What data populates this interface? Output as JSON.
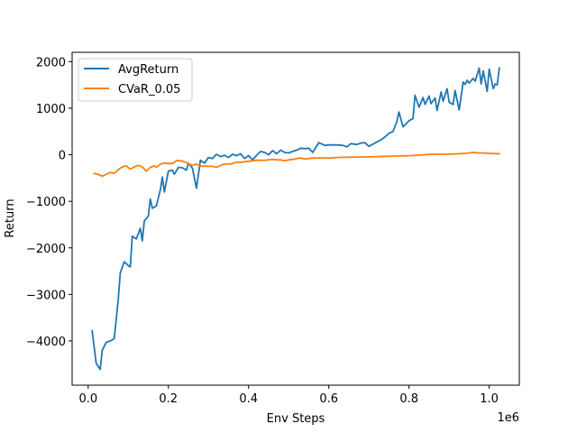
{
  "chart_data": {
    "type": "line",
    "title": "",
    "xlabel": "Env Steps",
    "ylabel": "Return",
    "x_offset_label": "1e6",
    "xlim": [
      -0.04,
      1.075
    ],
    "ylim": [
      -4950,
      2200
    ],
    "x_ticks": [
      0.0,
      0.2,
      0.4,
      0.6,
      0.8,
      1.0
    ],
    "x_tick_labels": [
      "0.0",
      "0.2",
      "0.4",
      "0.6",
      "0.8",
      "1.0"
    ],
    "y_ticks": [
      -4000,
      -3000,
      -2000,
      -1000,
      0,
      1000,
      2000
    ],
    "y_tick_labels": [
      "−4000",
      "−3000",
      "−2000",
      "−1000",
      "0",
      "1000",
      "2000"
    ],
    "grid": false,
    "legend_placement": "top-left",
    "series": [
      {
        "name": "AvgReturn",
        "color": "#1f77b4",
        "points": [
          [
            0.01,
            -3780
          ],
          [
            0.02,
            -4480
          ],
          [
            0.03,
            -4610
          ],
          [
            0.035,
            -4200
          ],
          [
            0.045,
            -4030
          ],
          [
            0.055,
            -4000
          ],
          [
            0.065,
            -3950
          ],
          [
            0.075,
            -3100
          ],
          [
            0.08,
            -2540
          ],
          [
            0.09,
            -2300
          ],
          [
            0.1,
            -2380
          ],
          [
            0.105,
            -2410
          ],
          [
            0.11,
            -1750
          ],
          [
            0.12,
            -1810
          ],
          [
            0.13,
            -1580
          ],
          [
            0.135,
            -1850
          ],
          [
            0.14,
            -1420
          ],
          [
            0.15,
            -1320
          ],
          [
            0.155,
            -950
          ],
          [
            0.16,
            -1150
          ],
          [
            0.17,
            -1100
          ],
          [
            0.18,
            -750
          ],
          [
            0.185,
            -480
          ],
          [
            0.19,
            -800
          ],
          [
            0.2,
            -350
          ],
          [
            0.21,
            -330
          ],
          [
            0.215,
            -420
          ],
          [
            0.225,
            -270
          ],
          [
            0.235,
            -280
          ],
          [
            0.245,
            -330
          ],
          [
            0.25,
            -180
          ],
          [
            0.26,
            -290
          ],
          [
            0.27,
            -720
          ],
          [
            0.28,
            -120
          ],
          [
            0.29,
            -180
          ],
          [
            0.3,
            -60
          ],
          [
            0.31,
            -80
          ],
          [
            0.32,
            10
          ],
          [
            0.33,
            -40
          ],
          [
            0.34,
            -10
          ],
          [
            0.35,
            -60
          ],
          [
            0.36,
            10
          ],
          [
            0.37,
            -20
          ],
          [
            0.38,
            20
          ],
          [
            0.39,
            -80
          ],
          [
            0.4,
            -20
          ],
          [
            0.41,
            -110
          ],
          [
            0.42,
            -10
          ],
          [
            0.43,
            70
          ],
          [
            0.44,
            50
          ],
          [
            0.45,
            0
          ],
          [
            0.46,
            90
          ],
          [
            0.47,
            20
          ],
          [
            0.48,
            100
          ],
          [
            0.49,
            50
          ],
          [
            0.5,
            40
          ],
          [
            0.51,
            70
          ],
          [
            0.52,
            100
          ],
          [
            0.53,
            140
          ],
          [
            0.54,
            130
          ],
          [
            0.55,
            140
          ],
          [
            0.56,
            50
          ],
          [
            0.575,
            260
          ],
          [
            0.59,
            200
          ],
          [
            0.6,
            210
          ],
          [
            0.62,
            210
          ],
          [
            0.635,
            200
          ],
          [
            0.645,
            170
          ],
          [
            0.655,
            240
          ],
          [
            0.67,
            220
          ],
          [
            0.68,
            250
          ],
          [
            0.69,
            260
          ],
          [
            0.7,
            180
          ],
          [
            0.715,
            250
          ],
          [
            0.73,
            320
          ],
          [
            0.74,
            380
          ],
          [
            0.75,
            460
          ],
          [
            0.76,
            500
          ],
          [
            0.77,
            720
          ],
          [
            0.775,
            920
          ],
          [
            0.785,
            600
          ],
          [
            0.8,
            730
          ],
          [
            0.81,
            780
          ],
          [
            0.815,
            1280
          ],
          [
            0.825,
            1020
          ],
          [
            0.835,
            1230
          ],
          [
            0.84,
            1080
          ],
          [
            0.85,
            1260
          ],
          [
            0.855,
            1100
          ],
          [
            0.865,
            1220
          ],
          [
            0.87,
            950
          ],
          [
            0.88,
            1350
          ],
          [
            0.885,
            1150
          ],
          [
            0.895,
            1420
          ],
          [
            0.9,
            1130
          ],
          [
            0.91,
            1080
          ],
          [
            0.915,
            1380
          ],
          [
            0.925,
            960
          ],
          [
            0.935,
            1560
          ],
          [
            0.94,
            1510
          ],
          [
            0.945,
            1600
          ],
          [
            0.95,
            1540
          ],
          [
            0.96,
            1640
          ],
          [
            0.965,
            1580
          ],
          [
            0.975,
            1860
          ],
          [
            0.98,
            1520
          ],
          [
            0.985,
            1800
          ],
          [
            0.995,
            1360
          ],
          [
            1.0,
            1840
          ],
          [
            1.01,
            1420
          ],
          [
            1.015,
            1520
          ],
          [
            1.02,
            1500
          ],
          [
            1.025,
            1860
          ]
        ]
      },
      {
        "name": "CVaR_0.05",
        "color": "#ff7f0e",
        "points": [
          [
            0.015,
            -400
          ],
          [
            0.025,
            -420
          ],
          [
            0.035,
            -460
          ],
          [
            0.045,
            -420
          ],
          [
            0.055,
            -380
          ],
          [
            0.065,
            -400
          ],
          [
            0.075,
            -320
          ],
          [
            0.085,
            -260
          ],
          [
            0.095,
            -240
          ],
          [
            0.105,
            -310
          ],
          [
            0.115,
            -260
          ],
          [
            0.125,
            -230
          ],
          [
            0.135,
            -260
          ],
          [
            0.145,
            -350
          ],
          [
            0.155,
            -270
          ],
          [
            0.165,
            -240
          ],
          [
            0.17,
            -270
          ],
          [
            0.18,
            -200
          ],
          [
            0.19,
            -180
          ],
          [
            0.2,
            -190
          ],
          [
            0.21,
            -190
          ],
          [
            0.22,
            -130
          ],
          [
            0.23,
            -130
          ],
          [
            0.24,
            -150
          ],
          [
            0.25,
            -190
          ],
          [
            0.26,
            -230
          ],
          [
            0.27,
            -200
          ],
          [
            0.28,
            -250
          ],
          [
            0.29,
            -240
          ],
          [
            0.3,
            -250
          ],
          [
            0.31,
            -250
          ],
          [
            0.32,
            -270
          ],
          [
            0.33,
            -230
          ],
          [
            0.34,
            -200
          ],
          [
            0.35,
            -200
          ],
          [
            0.36,
            -190
          ],
          [
            0.37,
            -160
          ],
          [
            0.38,
            -160
          ],
          [
            0.39,
            -150
          ],
          [
            0.4,
            -140
          ],
          [
            0.41,
            -130
          ],
          [
            0.42,
            -120
          ],
          [
            0.43,
            -120
          ],
          [
            0.44,
            -120
          ],
          [
            0.45,
            -110
          ],
          [
            0.46,
            -100
          ],
          [
            0.47,
            -110
          ],
          [
            0.48,
            -110
          ],
          [
            0.49,
            -130
          ],
          [
            0.5,
            -110
          ],
          [
            0.51,
            -100
          ],
          [
            0.52,
            -80
          ],
          [
            0.53,
            -70
          ],
          [
            0.54,
            -90
          ],
          [
            0.55,
            -80
          ],
          [
            0.56,
            -70
          ],
          [
            0.58,
            -70
          ],
          [
            0.6,
            -70
          ],
          [
            0.62,
            -60
          ],
          [
            0.64,
            -55
          ],
          [
            0.66,
            -50
          ],
          [
            0.68,
            -50
          ],
          [
            0.7,
            -45
          ],
          [
            0.72,
            -40
          ],
          [
            0.74,
            -35
          ],
          [
            0.76,
            -30
          ],
          [
            0.78,
            -25
          ],
          [
            0.8,
            -20
          ],
          [
            0.82,
            -10
          ],
          [
            0.84,
            0
          ],
          [
            0.86,
            10
          ],
          [
            0.88,
            10
          ],
          [
            0.9,
            10
          ],
          [
            0.92,
            20
          ],
          [
            0.94,
            30
          ],
          [
            0.96,
            50
          ],
          [
            0.97,
            40
          ],
          [
            0.98,
            40
          ],
          [
            1.0,
            30
          ],
          [
            1.025,
            20
          ]
        ]
      }
    ]
  }
}
